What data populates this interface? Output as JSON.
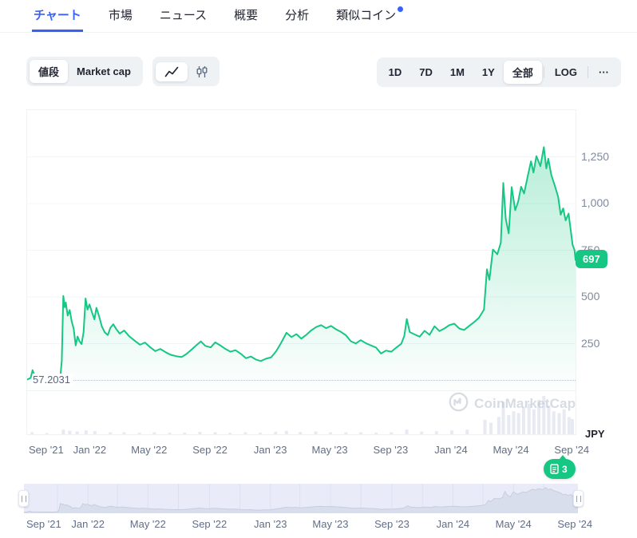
{
  "tabs": {
    "items": [
      {
        "label": "チャート",
        "active": true,
        "dot": false
      },
      {
        "label": "市場",
        "active": false,
        "dot": false
      },
      {
        "label": "ニュース",
        "active": false,
        "dot": false
      },
      {
        "label": "概要",
        "active": false,
        "dot": false
      },
      {
        "label": "分析",
        "active": false,
        "dot": false
      },
      {
        "label": "類似コイン",
        "active": false,
        "dot": true
      }
    ]
  },
  "toolbar": {
    "metric_toggle": {
      "options": [
        "値段",
        "Market cap"
      ],
      "selected": "値段"
    },
    "chart_type_toggle": {
      "options": [
        "line-chart-icon",
        "candlestick-icon"
      ],
      "selected": "line-chart-icon"
    },
    "range_buttons": {
      "options": [
        {
          "label": "1D",
          "selected": false,
          "divider_after": false
        },
        {
          "label": "7D",
          "selected": false,
          "divider_after": false
        },
        {
          "label": "1M",
          "selected": false,
          "divider_after": false
        },
        {
          "label": "1Y",
          "selected": false,
          "divider_after": false
        },
        {
          "label": "全部",
          "selected": true,
          "divider_after": true
        },
        {
          "label": "LOG",
          "selected": false,
          "divider_after": true
        },
        {
          "label": "···",
          "selected": false,
          "divider_after": false
        }
      ]
    }
  },
  "news_badge": {
    "count": "3"
  },
  "chart_data": {
    "type": "area",
    "title": "",
    "currency": "JPY",
    "line_color": "#16c784",
    "watermark": "CoinMarketCap",
    "axis_range": {
      "start": "2021-08-26",
      "end": "2024-09-07",
      "y_min": 0,
      "y_max": 1500
    },
    "y_ticks": [
      {
        "label": "1,250",
        "value": 1250
      },
      {
        "label": "1,000",
        "value": 1000
      },
      {
        "label": "750",
        "value": 750
      },
      {
        "label": "500",
        "value": 500
      },
      {
        "label": "250",
        "value": 250
      }
    ],
    "x_ticks": [
      {
        "label": "Sep '21",
        "date": "2021-09-01"
      },
      {
        "label": "Jan '22",
        "date": "2022-01-01"
      },
      {
        "label": "May '22",
        "date": "2022-05-01"
      },
      {
        "label": "Sep '22",
        "date": "2022-09-01"
      },
      {
        "label": "Jan '23",
        "date": "2023-01-01"
      },
      {
        "label": "May '23",
        "date": "2023-05-01"
      },
      {
        "label": "Sep '23",
        "date": "2023-09-01"
      },
      {
        "label": "Jan '24",
        "date": "2024-01-01"
      },
      {
        "label": "May '24",
        "date": "2024-05-01"
      },
      {
        "label": "Sep '24",
        "date": "2024-09-01"
      }
    ],
    "min_annotation": {
      "label": "57.2031",
      "value": 57.2031
    },
    "last_price": {
      "label": "697",
      "value": 697
    },
    "series": [
      {
        "name": "price_jpy",
        "points": [
          [
            "2021-08-26",
            58
          ],
          [
            "2021-09-02",
            66
          ],
          [
            "2021-09-06",
            108
          ],
          [
            "2021-09-10",
            78
          ],
          [
            "2021-09-16",
            70
          ],
          [
            "2021-09-24",
            64
          ],
          [
            "2021-10-04",
            62
          ],
          [
            "2021-10-14",
            59
          ],
          [
            "2021-10-24",
            60
          ],
          [
            "2021-11-01",
            68
          ],
          [
            "2021-11-04",
            160
          ],
          [
            "2021-11-07",
            505
          ],
          [
            "2021-11-10",
            445
          ],
          [
            "2021-11-12",
            470
          ],
          [
            "2021-11-16",
            400
          ],
          [
            "2021-11-20",
            430
          ],
          [
            "2021-11-24",
            370
          ],
          [
            "2021-11-28",
            330
          ],
          [
            "2021-12-02",
            240
          ],
          [
            "2021-12-06",
            288
          ],
          [
            "2021-12-10",
            262
          ],
          [
            "2021-12-14",
            248
          ],
          [
            "2021-12-18",
            312
          ],
          [
            "2021-12-22",
            492
          ],
          [
            "2021-12-26",
            432
          ],
          [
            "2021-12-30",
            460
          ],
          [
            "2022-01-04",
            418
          ],
          [
            "2022-01-09",
            380
          ],
          [
            "2022-01-13",
            442
          ],
          [
            "2022-01-18",
            400
          ],
          [
            "2022-01-24",
            342
          ],
          [
            "2022-01-30",
            310
          ],
          [
            "2022-02-05",
            296
          ],
          [
            "2022-02-10",
            334
          ],
          [
            "2022-02-16",
            354
          ],
          [
            "2022-02-22",
            328
          ],
          [
            "2022-03-01",
            304
          ],
          [
            "2022-03-10",
            320
          ],
          [
            "2022-03-20",
            290
          ],
          [
            "2022-04-01",
            264
          ],
          [
            "2022-04-11",
            244
          ],
          [
            "2022-04-21",
            256
          ],
          [
            "2022-05-02",
            230
          ],
          [
            "2022-05-12",
            210
          ],
          [
            "2022-05-22",
            222
          ],
          [
            "2022-06-02",
            204
          ],
          [
            "2022-06-12",
            190
          ],
          [
            "2022-06-23",
            183
          ],
          [
            "2022-07-04",
            178
          ],
          [
            "2022-07-14",
            195
          ],
          [
            "2022-07-25",
            220
          ],
          [
            "2022-08-04",
            244
          ],
          [
            "2022-08-12",
            262
          ],
          [
            "2022-08-21",
            238
          ],
          [
            "2022-09-01",
            230
          ],
          [
            "2022-09-10",
            257
          ],
          [
            "2022-09-20",
            241
          ],
          [
            "2022-10-01",
            221
          ],
          [
            "2022-10-11",
            207
          ],
          [
            "2022-10-21",
            215
          ],
          [
            "2022-11-01",
            195
          ],
          [
            "2022-11-11",
            172
          ],
          [
            "2022-11-21",
            181
          ],
          [
            "2022-12-01",
            165
          ],
          [
            "2022-12-11",
            157
          ],
          [
            "2022-12-21",
            169
          ],
          [
            "2023-01-01",
            177
          ],
          [
            "2023-01-11",
            209
          ],
          [
            "2023-01-21",
            254
          ],
          [
            "2023-02-01",
            308
          ],
          [
            "2023-02-11",
            285
          ],
          [
            "2023-02-21",
            301
          ],
          [
            "2023-03-03",
            277
          ],
          [
            "2023-03-13",
            297
          ],
          [
            "2023-03-23",
            321
          ],
          [
            "2023-04-02",
            339
          ],
          [
            "2023-04-12",
            349
          ],
          [
            "2023-04-22",
            333
          ],
          [
            "2023-05-02",
            345
          ],
          [
            "2023-05-12",
            327
          ],
          [
            "2023-05-22",
            313
          ],
          [
            "2023-06-01",
            295
          ],
          [
            "2023-06-11",
            263
          ],
          [
            "2023-06-21",
            251
          ],
          [
            "2023-07-01",
            269
          ],
          [
            "2023-07-11",
            253
          ],
          [
            "2023-07-21",
            241
          ],
          [
            "2023-08-01",
            229
          ],
          [
            "2023-08-11",
            197
          ],
          [
            "2023-08-21",
            213
          ],
          [
            "2023-09-01",
            207
          ],
          [
            "2023-09-11",
            229
          ],
          [
            "2023-09-21",
            249
          ],
          [
            "2023-09-27",
            292
          ],
          [
            "2023-10-02",
            382
          ],
          [
            "2023-10-08",
            312
          ],
          [
            "2023-10-18",
            299
          ],
          [
            "2023-10-28",
            287
          ],
          [
            "2023-11-07",
            319
          ],
          [
            "2023-11-17",
            297
          ],
          [
            "2023-11-27",
            343
          ],
          [
            "2023-12-07",
            317
          ],
          [
            "2023-12-17",
            331
          ],
          [
            "2023-12-27",
            349
          ],
          [
            "2024-01-06",
            357
          ],
          [
            "2024-01-16",
            331
          ],
          [
            "2024-01-26",
            323
          ],
          [
            "2024-02-05",
            345
          ],
          [
            "2024-02-15",
            365
          ],
          [
            "2024-02-25",
            389
          ],
          [
            "2024-03-06",
            432
          ],
          [
            "2024-03-12",
            648
          ],
          [
            "2024-03-17",
            592
          ],
          [
            "2024-03-24",
            754
          ],
          [
            "2024-04-02",
            728
          ],
          [
            "2024-04-09",
            790
          ],
          [
            "2024-04-14",
            1110
          ],
          [
            "2024-04-19",
            918
          ],
          [
            "2024-04-25",
            840
          ],
          [
            "2024-05-01",
            1088
          ],
          [
            "2024-05-08",
            964
          ],
          [
            "2024-05-14",
            1010
          ],
          [
            "2024-05-20",
            1090
          ],
          [
            "2024-05-26",
            1054
          ],
          [
            "2024-06-02",
            1142
          ],
          [
            "2024-06-09",
            1226
          ],
          [
            "2024-06-14",
            1166
          ],
          [
            "2024-06-20",
            1254
          ],
          [
            "2024-06-28",
            1200
          ],
          [
            "2024-07-05",
            1302
          ],
          [
            "2024-07-10",
            1188
          ],
          [
            "2024-07-14",
            1240
          ],
          [
            "2024-07-20",
            1154
          ],
          [
            "2024-07-28",
            1088
          ],
          [
            "2024-08-03",
            1034
          ],
          [
            "2024-08-08",
            940
          ],
          [
            "2024-08-13",
            974
          ],
          [
            "2024-08-18",
            910
          ],
          [
            "2024-08-24",
            946
          ],
          [
            "2024-09-01",
            780
          ],
          [
            "2024-09-05",
            750
          ],
          [
            "2024-09-07",
            697
          ]
        ]
      }
    ],
    "volume_bars": [
      [
        "2021-09-05",
        0.05
      ],
      [
        "2021-10-05",
        0.03
      ],
      [
        "2021-11-07",
        0.12
      ],
      [
        "2021-11-20",
        0.09
      ],
      [
        "2021-12-05",
        0.07
      ],
      [
        "2021-12-23",
        0.1
      ],
      [
        "2022-01-10",
        0.08
      ],
      [
        "2022-02-10",
        0.05
      ],
      [
        "2022-03-10",
        0.05
      ],
      [
        "2022-04-10",
        0.04
      ],
      [
        "2022-05-10",
        0.05
      ],
      [
        "2022-06-10",
        0.04
      ],
      [
        "2022-07-10",
        0.04
      ],
      [
        "2022-08-10",
        0.06
      ],
      [
        "2022-09-10",
        0.05
      ],
      [
        "2022-10-10",
        0.04
      ],
      [
        "2022-11-10",
        0.05
      ],
      [
        "2022-12-10",
        0.04
      ],
      [
        "2023-01-10",
        0.06
      ],
      [
        "2023-02-01",
        0.09
      ],
      [
        "2023-03-01",
        0.06
      ],
      [
        "2023-04-01",
        0.07
      ],
      [
        "2023-05-01",
        0.05
      ],
      [
        "2023-06-01",
        0.05
      ],
      [
        "2023-07-01",
        0.05
      ],
      [
        "2023-08-01",
        0.04
      ],
      [
        "2023-09-01",
        0.05
      ],
      [
        "2023-10-02",
        0.12
      ],
      [
        "2023-11-01",
        0.07
      ],
      [
        "2023-12-01",
        0.08
      ],
      [
        "2024-01-01",
        0.1
      ],
      [
        "2024-02-01",
        0.12
      ],
      [
        "2024-03-08",
        0.38
      ],
      [
        "2024-03-20",
        0.3
      ],
      [
        "2024-04-05",
        0.45
      ],
      [
        "2024-04-14",
        0.85
      ],
      [
        "2024-04-25",
        0.5
      ],
      [
        "2024-05-05",
        0.6
      ],
      [
        "2024-05-15",
        0.55
      ],
      [
        "2024-05-25",
        0.7
      ],
      [
        "2024-06-05",
        0.8
      ],
      [
        "2024-06-15",
        0.65
      ],
      [
        "2024-06-25",
        0.9
      ],
      [
        "2024-07-05",
        1.0
      ],
      [
        "2024-07-15",
        0.75
      ],
      [
        "2024-07-25",
        0.6
      ],
      [
        "2024-08-05",
        0.55
      ],
      [
        "2024-08-15",
        0.65
      ],
      [
        "2024-08-25",
        0.45
      ],
      [
        "2024-09-05",
        0.4
      ]
    ],
    "legend": [],
    "grid": true
  }
}
